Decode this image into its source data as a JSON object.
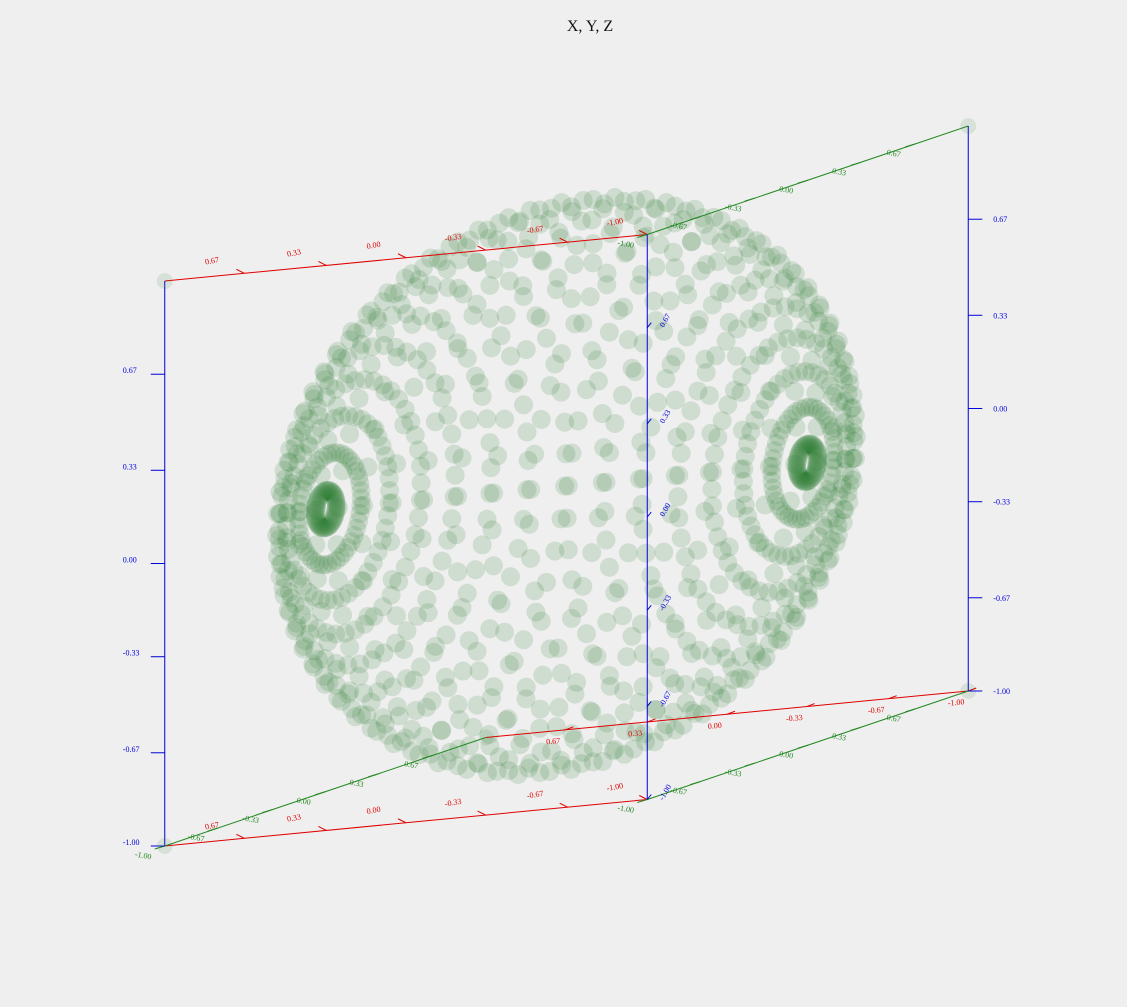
{
  "chart_data": {
    "type": "scatter",
    "projection": "3d",
    "title": "X, Y, Z",
    "point_shape": "sphere-surface",
    "lat_bands": 24,
    "points_per_band": 46,
    "radius": 1.0,
    "axes": {
      "x": {
        "range": [
          -1,
          1
        ],
        "ticks": [
          "-1.00",
          "-0.67",
          "-0.33",
          "0.00",
          "0.33",
          "0.67"
        ],
        "color": "#e00000"
      },
      "y": {
        "range": [
          -1,
          1
        ],
        "ticks": [
          "-1.00",
          "-0.67",
          "-0.33",
          "0.00",
          "0.33",
          "0.67"
        ],
        "color": "#228822"
      },
      "z": {
        "range": [
          -1,
          1
        ],
        "ticks": [
          "-1.00",
          "-0.67",
          "-0.33",
          "0.00",
          "0.33",
          "0.67"
        ],
        "color": "#0000dd"
      }
    },
    "colors": {
      "point": "#2e7d32",
      "background": "#efefef"
    }
  }
}
